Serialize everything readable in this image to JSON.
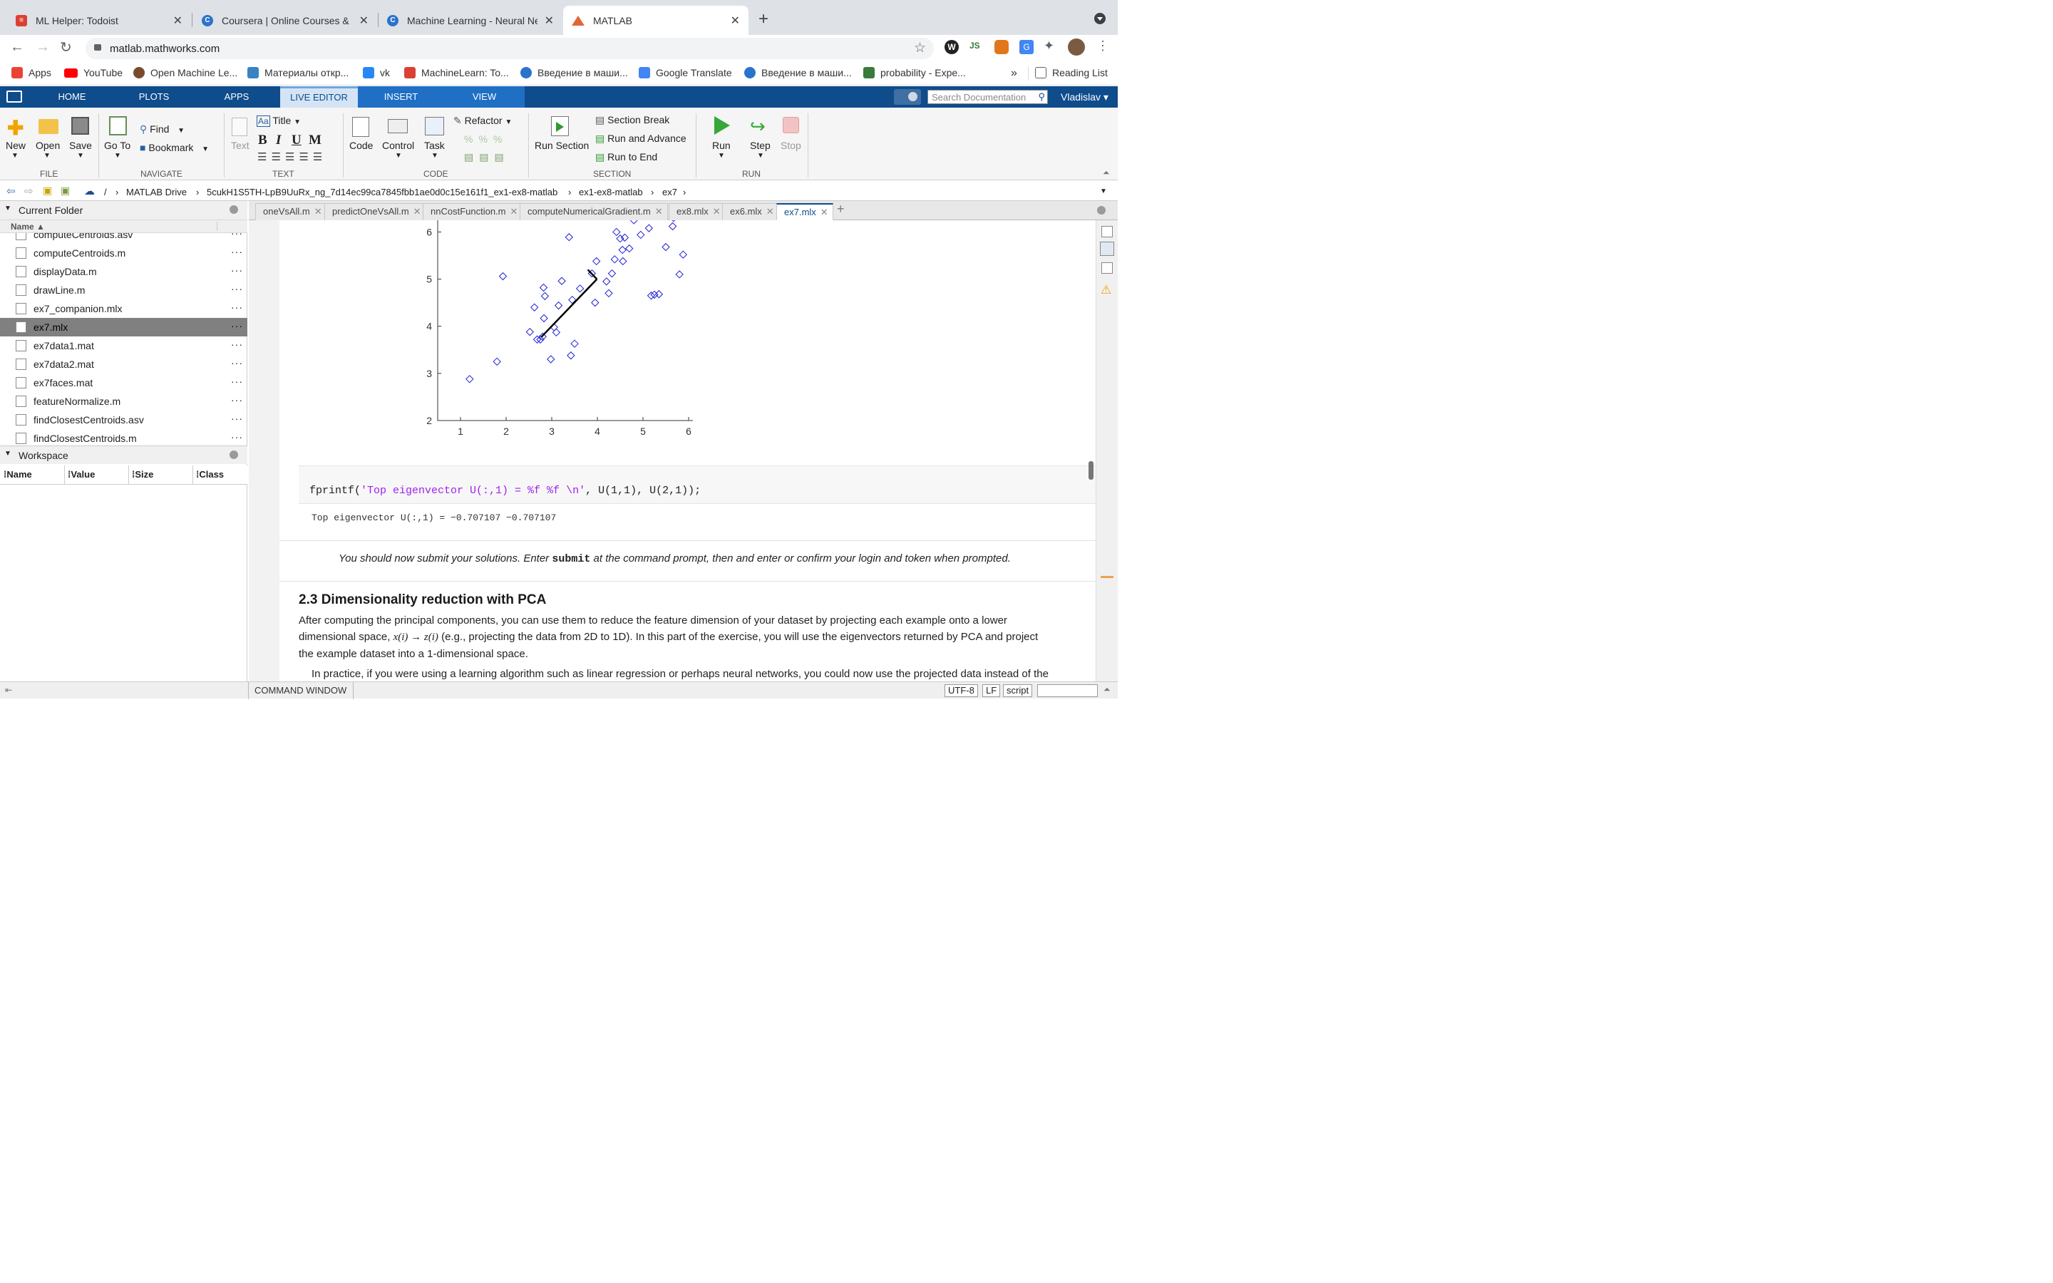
{
  "browser": {
    "tabs": [
      {
        "title": "ML Helper: Todoist",
        "color": "#db4035"
      },
      {
        "title": "Coursera | Online Courses & Cr",
        "color": "#2a73cc"
      },
      {
        "title": "Machine Learning - Neural Net",
        "color": "#2a73cc"
      },
      {
        "title": "MATLAB",
        "color": "#e16737"
      }
    ],
    "url": "matlab.mathworks.com",
    "bookmarks": [
      {
        "label": "Apps",
        "color": "#ea4335"
      },
      {
        "label": "YouTube",
        "color": "#ff0000"
      },
      {
        "label": "Open Machine Le...",
        "color": "#7a4b2a"
      },
      {
        "label": "Материалы откр...",
        "color": "#3b82c4"
      },
      {
        "label": "vk",
        "color": "#2787f5"
      },
      {
        "label": "MachineLearn: To...",
        "color": "#db4035"
      },
      {
        "label": "Введение в маши...",
        "color": "#2a73cc"
      },
      {
        "label": "Google Translate",
        "color": "#4285f4"
      },
      {
        "label": "Введение в маши...",
        "color": "#2a73cc"
      },
      {
        "label": "probability - Expe...",
        "color": "#3a7a3a"
      }
    ],
    "bookmarks_overflow": "»",
    "reading_list": "Reading List"
  },
  "toolstrip": {
    "tabs": [
      "HOME",
      "PLOTS",
      "APPS",
      "LIVE EDITOR",
      "INSERT",
      "VIEW"
    ],
    "search_placeholder": "Search Documentation",
    "user": "Vladislav"
  },
  "ribbon": {
    "file": {
      "new": "New",
      "open": "Open",
      "save": "Save",
      "group": "FILE"
    },
    "navigate": {
      "goto": "Go To",
      "find": "Find",
      "bookmark": "Bookmark",
      "group": "NAVIGATE"
    },
    "text": {
      "title": "Title",
      "text": "Text",
      "bold": "B",
      "italic": "I",
      "underline": "U",
      "mono": "M",
      "group": "TEXT"
    },
    "code": {
      "code": "Code",
      "control": "Control",
      "task": "Task",
      "refactor": "Refactor",
      "group": "CODE"
    },
    "section": {
      "run_section": "Run Section",
      "section_break": "Section Break",
      "run_advance": "Run and Advance",
      "run_end": "Run to End",
      "group": "SECTION"
    },
    "run": {
      "run": "Run",
      "step": "Step",
      "stop": "Stop",
      "group": "RUN"
    }
  },
  "path": [
    "/",
    "MATLAB Drive",
    "5cukH1S5TH-LpB9UuRx_ng_7d14ec99ca7845fbb1ae0d0c15e161f1_ex1-ex8-matlab",
    "ex1-ex8-matlab",
    "ex7"
  ],
  "current_folder": {
    "title": "Current Folder",
    "column": "Name ▲",
    "files": [
      {
        "name": "computeCentroids.asv",
        "selected": false
      },
      {
        "name": "computeCentroids.m",
        "selected": false
      },
      {
        "name": "displayData.m",
        "selected": false
      },
      {
        "name": "drawLine.m",
        "selected": false
      },
      {
        "name": "ex7_companion.mlx",
        "selected": false
      },
      {
        "name": "ex7.mlx",
        "selected": true
      },
      {
        "name": "ex7data1.mat",
        "selected": false
      },
      {
        "name": "ex7data2.mat",
        "selected": false
      },
      {
        "name": "ex7faces.mat",
        "selected": false
      },
      {
        "name": "featureNormalize.m",
        "selected": false
      },
      {
        "name": "findClosestCentroids.asv",
        "selected": false
      },
      {
        "name": "findClosestCentroids.m",
        "selected": false
      }
    ],
    "row_menu": "···"
  },
  "workspace": {
    "title": "Workspace",
    "columns": [
      "Name",
      "Value",
      "Size",
      "Class"
    ]
  },
  "editor_tabs": [
    {
      "name": "oneVsAll.m",
      "active": false
    },
    {
      "name": "predictOneVsAll.m",
      "active": false
    },
    {
      "name": "nnCostFunction.m",
      "active": false
    },
    {
      "name": "computeNumericalGradient.m",
      "active": false
    },
    {
      "name": "ex8.mlx",
      "active": false
    },
    {
      "name": "ex6.mlx",
      "active": false
    },
    {
      "name": "ex7.mlx",
      "active": true
    }
  ],
  "chart_data": {
    "type": "scatter",
    "xlim": [
      0.5,
      6.5
    ],
    "ylim": [
      2,
      6.4
    ],
    "xticks": [
      1,
      2,
      3,
      4,
      5,
      6
    ],
    "yticks": [
      2,
      3,
      4,
      5,
      6
    ],
    "marker_color": "#1f1fd6",
    "series": [
      {
        "name": "",
        "points": [
          [
            1.2,
            2.88
          ],
          [
            1.8,
            3.25
          ],
          [
            1.93,
            5.06
          ],
          [
            2.52,
            3.88
          ],
          [
            2.62,
            4.4
          ],
          [
            2.68,
            3.72
          ],
          [
            2.75,
            3.72
          ],
          [
            2.8,
            3.78
          ],
          [
            2.82,
            4.82
          ],
          [
            2.83,
            4.17
          ],
          [
            2.85,
            4.64
          ],
          [
            2.98,
            3.3
          ],
          [
            3.05,
            3.98
          ],
          [
            3.1,
            3.87
          ],
          [
            3.15,
            4.44
          ],
          [
            3.22,
            4.96
          ],
          [
            3.38,
            5.89
          ],
          [
            3.42,
            3.38
          ],
          [
            3.45,
            4.56
          ],
          [
            3.5,
            3.63
          ],
          [
            3.62,
            4.8
          ],
          [
            3.88,
            5.12
          ],
          [
            3.95,
            4.5
          ],
          [
            3.98,
            5.38
          ],
          [
            4.2,
            4.95
          ],
          [
            4.25,
            4.7
          ],
          [
            4.32,
            5.12
          ],
          [
            4.38,
            5.42
          ],
          [
            4.42,
            6.0
          ],
          [
            4.5,
            5.86
          ],
          [
            4.55,
            5.62
          ],
          [
            4.56,
            5.38
          ],
          [
            4.6,
            5.88
          ],
          [
            4.7,
            5.65
          ],
          [
            4.8,
            6.25
          ],
          [
            4.95,
            5.94
          ],
          [
            5.13,
            6.08
          ],
          [
            5.18,
            4.65
          ],
          [
            5.25,
            4.67
          ],
          [
            5.35,
            4.68
          ],
          [
            5.5,
            5.68
          ],
          [
            5.65,
            6.12
          ],
          [
            5.67,
            6.3
          ],
          [
            5.8,
            5.1
          ],
          [
            5.88,
            5.52
          ]
        ]
      }
    ],
    "lines": [
      {
        "x": [
          3.99,
          2.77
        ],
        "y": [
          5.0,
          3.77
        ]
      },
      {
        "x": [
          3.99,
          3.79
        ],
        "y": [
          5.0,
          5.2
        ]
      }
    ]
  },
  "code_cell": {
    "func": "fprintf(",
    "str": "'Top eigenvector U(:,1) = %f %f \\n'",
    "rest": ", U(1,1), U(2,1));",
    "output": "Top eigenvector U(:,1) = −0.707107 −0.707107"
  },
  "submit_text": {
    "before": "You should now submit your solutions.  Enter ",
    "cmd": "submit",
    "after": " at the command prompt, then and enter or confirm your login and token when prompted."
  },
  "section": {
    "heading": "2.3 Dimensionality reduction with PCA",
    "p1_a": "After computing the principal components, you can use them to reduce the feature dimension of your dataset by projecting each example onto a lower",
    "p1_b": "dimensional space,",
    "p1_math": "x(i) → z(i)",
    "p1_c": "(e.g., projecting the data from 2D to 1D). In this part of the exercise, you will use the eigenvectors returned by PCA and project",
    "p1_d": "the example dataset into a 1-dimensional space.",
    "p2": "In practice, if you were using a learning algorithm such as linear regression or perhaps neural networks, you could now use the projected data instead of the"
  },
  "status": {
    "command_window": "COMMAND WINDOW",
    "encoding": "UTF-8",
    "eol": "LF",
    "mode": "script"
  }
}
